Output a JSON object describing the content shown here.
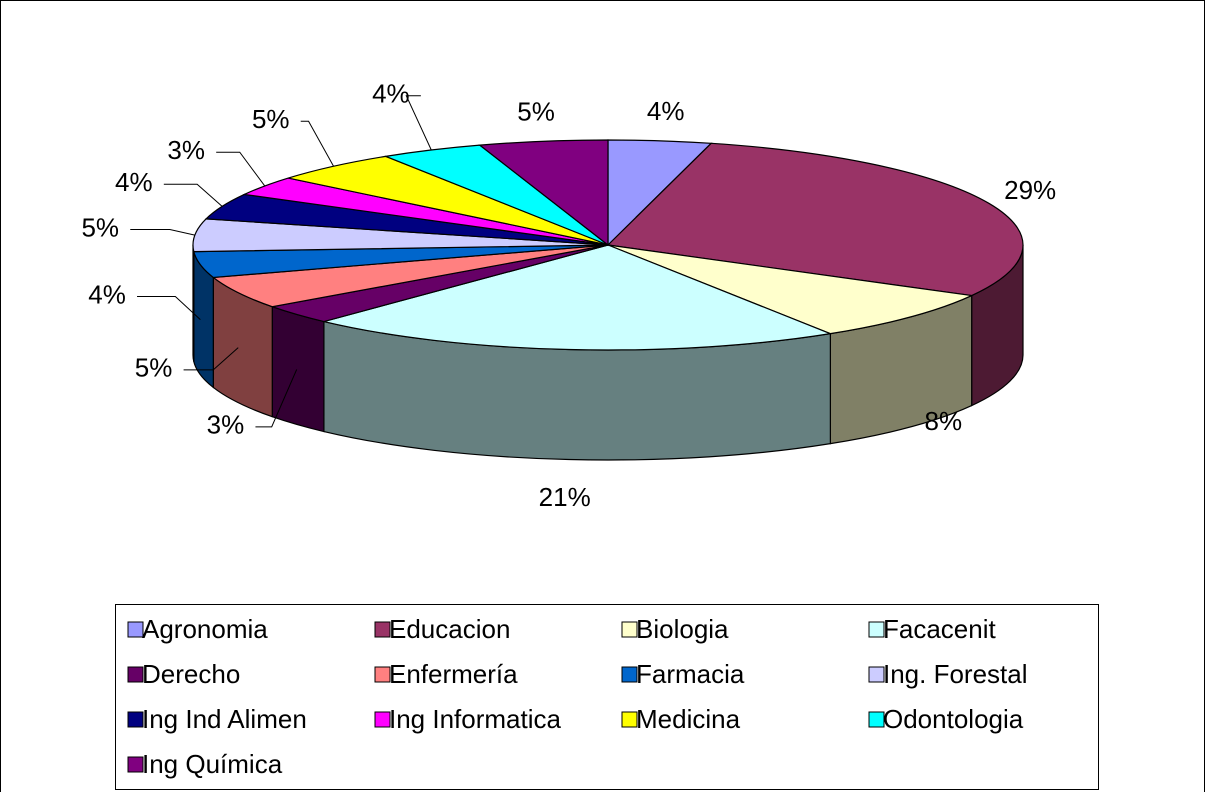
{
  "chart_data": {
    "type": "pie",
    "three_d": true,
    "categories": [
      "Agronomia",
      "Educacion",
      "Biologia",
      "Facacenit",
      "Derecho",
      "Enfermería",
      "Farmacia",
      "Ing. Forestal",
      "Ing Ind Alimen",
      "Ing Informatica",
      "Medicina",
      "Odontologia",
      "Ing Química"
    ],
    "values": [
      4,
      29,
      8,
      21,
      3,
      5,
      4,
      5,
      4,
      3,
      5,
      4,
      5
    ],
    "colors": [
      "#9999ff",
      "#993366",
      "#ffffcc",
      "#ccffff",
      "#660066",
      "#ff8080",
      "#0066cc",
      "#ccccff",
      "#000080",
      "#ff00ff",
      "#ffff00",
      "#00ffff",
      "#800080"
    ],
    "legend": "bottom"
  }
}
